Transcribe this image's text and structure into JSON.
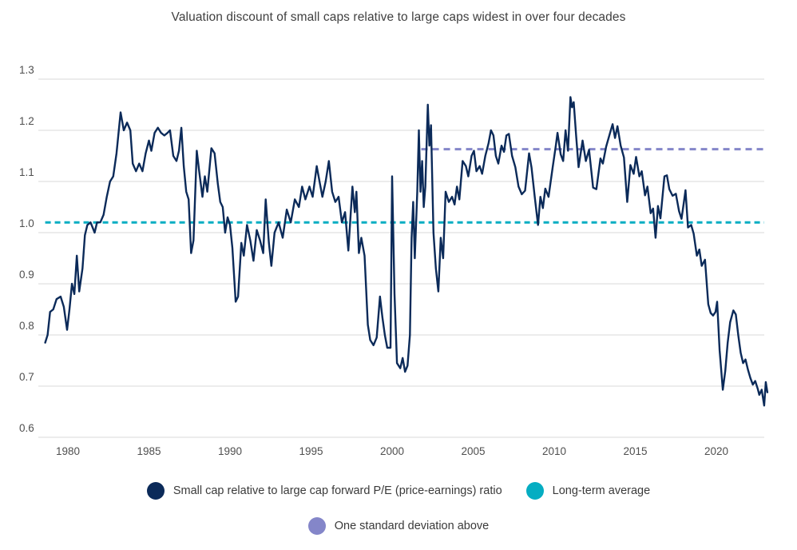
{
  "chart_data": {
    "type": "line",
    "title": "Valuation discount of small caps relative to large caps widest in over four decades",
    "x_axis": {
      "ticks": [
        1980,
        1985,
        1990,
        1995,
        2000,
        2005,
        2010,
        2015,
        2020
      ],
      "range": [
        1978.2,
        2023.3
      ],
      "grid": false
    },
    "y_axis": {
      "ticks": [
        0.6,
        0.7,
        0.8,
        0.9,
        1.0,
        1.1,
        1.2,
        1.3
      ],
      "range": [
        0.6,
        1.3
      ],
      "grid": true
    },
    "colors": {
      "small_cap_line": "#0b2a59",
      "long_term_average_line": "#05adc2",
      "one_std_above_line": "#8486c9",
      "gridline": "#e0e0e0",
      "tick_text": "#4f4f4f",
      "title_text": "#3f3f3f"
    },
    "legend_position": "bottom",
    "series": [
      {
        "name": "Small cap relative to large cap forward P/E (price-earnings) ratio",
        "style": "solid",
        "points": [
          [
            1978.6,
            0.785
          ],
          [
            1978.75,
            0.8
          ],
          [
            1978.9,
            0.845
          ],
          [
            1979.1,
            0.85
          ],
          [
            1979.3,
            0.87
          ],
          [
            1979.55,
            0.875
          ],
          [
            1979.75,
            0.855
          ],
          [
            1979.95,
            0.81
          ],
          [
            1980.1,
            0.85
          ],
          [
            1980.25,
            0.9
          ],
          [
            1980.4,
            0.88
          ],
          [
            1980.55,
            0.955
          ],
          [
            1980.7,
            0.885
          ],
          [
            1980.9,
            0.93
          ],
          [
            1981.05,
            0.995
          ],
          [
            1981.2,
            1.015
          ],
          [
            1981.4,
            1.02
          ],
          [
            1981.65,
            1.0
          ],
          [
            1981.8,
            1.02
          ],
          [
            1982.0,
            1.02
          ],
          [
            1982.2,
            1.035
          ],
          [
            1982.4,
            1.07
          ],
          [
            1982.6,
            1.1
          ],
          [
            1982.8,
            1.11
          ],
          [
            1983.0,
            1.155
          ],
          [
            1983.25,
            1.235
          ],
          [
            1983.45,
            1.2
          ],
          [
            1983.65,
            1.215
          ],
          [
            1983.85,
            1.2
          ],
          [
            1984.0,
            1.135
          ],
          [
            1984.2,
            1.12
          ],
          [
            1984.4,
            1.135
          ],
          [
            1984.6,
            1.12
          ],
          [
            1984.8,
            1.155
          ],
          [
            1985.0,
            1.18
          ],
          [
            1985.15,
            1.16
          ],
          [
            1985.35,
            1.195
          ],
          [
            1985.55,
            1.205
          ],
          [
            1985.75,
            1.195
          ],
          [
            1985.95,
            1.19
          ],
          [
            1986.15,
            1.195
          ],
          [
            1986.3,
            1.2
          ],
          [
            1986.5,
            1.15
          ],
          [
            1986.7,
            1.14
          ],
          [
            1986.85,
            1.16
          ],
          [
            1987.0,
            1.205
          ],
          [
            1987.15,
            1.13
          ],
          [
            1987.3,
            1.08
          ],
          [
            1987.45,
            1.065
          ],
          [
            1987.6,
            0.96
          ],
          [
            1987.75,
            0.985
          ],
          [
            1987.95,
            1.16
          ],
          [
            1988.1,
            1.12
          ],
          [
            1988.3,
            1.07
          ],
          [
            1988.45,
            1.11
          ],
          [
            1988.6,
            1.08
          ],
          [
            1988.85,
            1.165
          ],
          [
            1989.05,
            1.155
          ],
          [
            1989.25,
            1.095
          ],
          [
            1989.4,
            1.06
          ],
          [
            1989.55,
            1.05
          ],
          [
            1989.7,
            1.0
          ],
          [
            1989.85,
            1.03
          ],
          [
            1990.0,
            1.015
          ],
          [
            1990.15,
            0.97
          ],
          [
            1990.35,
            0.865
          ],
          [
            1990.5,
            0.875
          ],
          [
            1990.7,
            0.98
          ],
          [
            1990.85,
            0.955
          ],
          [
            1991.05,
            1.015
          ],
          [
            1991.25,
            0.985
          ],
          [
            1991.45,
            0.945
          ],
          [
            1991.65,
            1.005
          ],
          [
            1991.85,
            0.985
          ],
          [
            1992.05,
            0.96
          ],
          [
            1992.2,
            1.065
          ],
          [
            1992.4,
            0.98
          ],
          [
            1992.55,
            0.935
          ],
          [
            1992.75,
            1.0
          ],
          [
            1993.0,
            1.02
          ],
          [
            1993.25,
            0.99
          ],
          [
            1993.5,
            1.045
          ],
          [
            1993.75,
            1.02
          ],
          [
            1994.0,
            1.065
          ],
          [
            1994.25,
            1.05
          ],
          [
            1994.45,
            1.09
          ],
          [
            1994.65,
            1.065
          ],
          [
            1994.9,
            1.09
          ],
          [
            1995.1,
            1.07
          ],
          [
            1995.35,
            1.13
          ],
          [
            1995.55,
            1.095
          ],
          [
            1995.7,
            1.07
          ],
          [
            1995.9,
            1.1
          ],
          [
            1996.1,
            1.14
          ],
          [
            1996.3,
            1.08
          ],
          [
            1996.5,
            1.06
          ],
          [
            1996.7,
            1.07
          ],
          [
            1996.9,
            1.02
          ],
          [
            1997.1,
            1.04
          ],
          [
            1997.3,
            0.965
          ],
          [
            1997.55,
            1.09
          ],
          [
            1997.7,
            1.04
          ],
          [
            1997.8,
            1.08
          ],
          [
            1997.95,
            0.96
          ],
          [
            1998.1,
            0.99
          ],
          [
            1998.3,
            0.955
          ],
          [
            1998.5,
            0.82
          ],
          [
            1998.65,
            0.79
          ],
          [
            1998.85,
            0.78
          ],
          [
            1999.05,
            0.795
          ],
          [
            1999.25,
            0.875
          ],
          [
            1999.4,
            0.835
          ],
          [
            1999.55,
            0.8
          ],
          [
            1999.7,
            0.775
          ],
          [
            1999.9,
            0.775
          ],
          [
            2000.0,
            1.11
          ],
          [
            2000.15,
            0.88
          ],
          [
            2000.3,
            0.745
          ],
          [
            2000.5,
            0.735
          ],
          [
            2000.65,
            0.755
          ],
          [
            2000.8,
            0.728
          ],
          [
            2000.95,
            0.74
          ],
          [
            2001.1,
            0.8
          ],
          [
            2001.2,
            0.99
          ],
          [
            2001.3,
            1.06
          ],
          [
            2001.4,
            0.95
          ],
          [
            2001.55,
            1.08
          ],
          [
            2001.65,
            1.2
          ],
          [
            2001.75,
            1.08
          ],
          [
            2001.85,
            1.14
          ],
          [
            2001.95,
            1.05
          ],
          [
            2002.05,
            1.09
          ],
          [
            2002.2,
            1.25
          ],
          [
            2002.3,
            1.17
          ],
          [
            2002.4,
            1.21
          ],
          [
            2002.55,
            1.0
          ],
          [
            2002.7,
            0.93
          ],
          [
            2002.85,
            0.885
          ],
          [
            2003.0,
            0.99
          ],
          [
            2003.15,
            0.95
          ],
          [
            2003.3,
            1.08
          ],
          [
            2003.5,
            1.06
          ],
          [
            2003.7,
            1.07
          ],
          [
            2003.85,
            1.055
          ],
          [
            2004.0,
            1.09
          ],
          [
            2004.15,
            1.065
          ],
          [
            2004.35,
            1.14
          ],
          [
            2004.55,
            1.13
          ],
          [
            2004.7,
            1.11
          ],
          [
            2004.9,
            1.15
          ],
          [
            2005.05,
            1.16
          ],
          [
            2005.2,
            1.12
          ],
          [
            2005.4,
            1.13
          ],
          [
            2005.55,
            1.115
          ],
          [
            2005.75,
            1.15
          ],
          [
            2005.95,
            1.175
          ],
          [
            2006.1,
            1.2
          ],
          [
            2006.25,
            1.19
          ],
          [
            2006.4,
            1.15
          ],
          [
            2006.55,
            1.135
          ],
          [
            2006.75,
            1.17
          ],
          [
            2006.9,
            1.158
          ],
          [
            2007.05,
            1.19
          ],
          [
            2007.2,
            1.193
          ],
          [
            2007.4,
            1.15
          ],
          [
            2007.6,
            1.128
          ],
          [
            2007.8,
            1.09
          ],
          [
            2008.0,
            1.075
          ],
          [
            2008.2,
            1.082
          ],
          [
            2008.45,
            1.155
          ],
          [
            2008.6,
            1.127
          ],
          [
            2008.8,
            1.07
          ],
          [
            2009.0,
            1.015
          ],
          [
            2009.15,
            1.07
          ],
          [
            2009.3,
            1.048
          ],
          [
            2009.45,
            1.086
          ],
          [
            2009.65,
            1.07
          ],
          [
            2009.9,
            1.127
          ],
          [
            2010.1,
            1.17
          ],
          [
            2010.2,
            1.195
          ],
          [
            2010.4,
            1.153
          ],
          [
            2010.55,
            1.14
          ],
          [
            2010.7,
            1.2
          ],
          [
            2010.85,
            1.16
          ],
          [
            2011.0,
            1.265
          ],
          [
            2011.1,
            1.245
          ],
          [
            2011.2,
            1.255
          ],
          [
            2011.35,
            1.19
          ],
          [
            2011.5,
            1.128
          ],
          [
            2011.75,
            1.18
          ],
          [
            2011.95,
            1.14
          ],
          [
            2012.15,
            1.162
          ],
          [
            2012.4,
            1.088
          ],
          [
            2012.6,
            1.085
          ],
          [
            2012.85,
            1.145
          ],
          [
            2013.0,
            1.135
          ],
          [
            2013.2,
            1.168
          ],
          [
            2013.4,
            1.19
          ],
          [
            2013.6,
            1.212
          ],
          [
            2013.75,
            1.185
          ],
          [
            2013.9,
            1.208
          ],
          [
            2014.1,
            1.17
          ],
          [
            2014.3,
            1.147
          ],
          [
            2014.5,
            1.06
          ],
          [
            2014.7,
            1.132
          ],
          [
            2014.9,
            1.115
          ],
          [
            2015.05,
            1.148
          ],
          [
            2015.25,
            1.11
          ],
          [
            2015.4,
            1.12
          ],
          [
            2015.6,
            1.073
          ],
          [
            2015.75,
            1.09
          ],
          [
            2015.95,
            1.038
          ],
          [
            2016.1,
            1.047
          ],
          [
            2016.25,
            0.99
          ],
          [
            2016.4,
            1.052
          ],
          [
            2016.55,
            1.028
          ],
          [
            2016.8,
            1.11
          ],
          [
            2016.95,
            1.112
          ],
          [
            2017.1,
            1.085
          ],
          [
            2017.3,
            1.072
          ],
          [
            2017.5,
            1.076
          ],
          [
            2017.7,
            1.042
          ],
          [
            2017.85,
            1.027
          ],
          [
            2018.0,
            1.06
          ],
          [
            2018.1,
            1.083
          ],
          [
            2018.25,
            1.01
          ],
          [
            2018.45,
            1.015
          ],
          [
            2018.6,
            0.998
          ],
          [
            2018.8,
            0.955
          ],
          [
            2018.95,
            0.967
          ],
          [
            2019.1,
            0.935
          ],
          [
            2019.3,
            0.947
          ],
          [
            2019.5,
            0.86
          ],
          [
            2019.65,
            0.843
          ],
          [
            2019.8,
            0.838
          ],
          [
            2019.95,
            0.845
          ],
          [
            2020.05,
            0.865
          ],
          [
            2020.2,
            0.77
          ],
          [
            2020.4,
            0.693
          ],
          [
            2020.55,
            0.73
          ],
          [
            2020.7,
            0.785
          ],
          [
            2020.85,
            0.825
          ],
          [
            2021.05,
            0.848
          ],
          [
            2021.2,
            0.84
          ],
          [
            2021.35,
            0.8
          ],
          [
            2021.5,
            0.765
          ],
          [
            2021.65,
            0.745
          ],
          [
            2021.8,
            0.752
          ],
          [
            2021.95,
            0.732
          ],
          [
            2022.1,
            0.716
          ],
          [
            2022.25,
            0.703
          ],
          [
            2022.4,
            0.71
          ],
          [
            2022.55,
            0.695
          ],
          [
            2022.65,
            0.683
          ],
          [
            2022.8,
            0.693
          ],
          [
            2022.95,
            0.662
          ],
          [
            2023.05,
            0.708
          ],
          [
            2023.15,
            0.688
          ]
        ]
      },
      {
        "name": "Long-term average",
        "style": "dashed",
        "value": 1.02,
        "x_start": 1978.6,
        "x_end": 2022.95
      },
      {
        "name": "One standard deviation above",
        "style": "dashed",
        "value": 1.163,
        "x_start": 2001.8,
        "x_end": 2022.95
      }
    ]
  }
}
